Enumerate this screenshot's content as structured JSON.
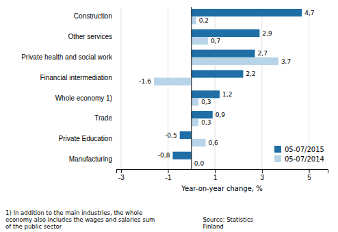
{
  "chart_data": {
    "type": "bar",
    "orientation": "horizontal",
    "categories": [
      "Construction",
      "Other services",
      "Private health and social work",
      "Financial intermediation",
      "Whole economy 1)",
      "Trade",
      "Private Education",
      "Manufacturing"
    ],
    "series": [
      {
        "name": "05-07/2015",
        "color": "#1F6EA6",
        "values": [
          4.7,
          2.9,
          2.7,
          2.2,
          1.2,
          0.9,
          -0.5,
          -0.8
        ],
        "value_labels": [
          "4,7",
          "2,9",
          "2,7",
          "2,2",
          "1,2",
          "0,9",
          "-0,5",
          "-0,8"
        ]
      },
      {
        "name": "05-07/2014",
        "color": "#B8D4E8",
        "values": [
          0.2,
          0.7,
          3.7,
          -1.6,
          0.3,
          0.3,
          0.6,
          0.0
        ],
        "value_labels": [
          "0,2",
          "0,7",
          "3,7",
          "-1,6",
          "0,3",
          "0,3",
          "0,6",
          "0,0"
        ]
      }
    ],
    "xlabel": "Year-on-year change, %",
    "xlim": [
      -3.2,
      5.8
    ],
    "xticks": [
      -3,
      -1,
      1,
      3,
      5
    ],
    "grid": true,
    "legend": "lower right",
    "data_labels": true,
    "annotations": [
      "1) In addition to the main industries, the whole\neconomy also includes the wages and salaries sum\nof the public sector",
      "Source: Statistics\nFinland"
    ]
  }
}
